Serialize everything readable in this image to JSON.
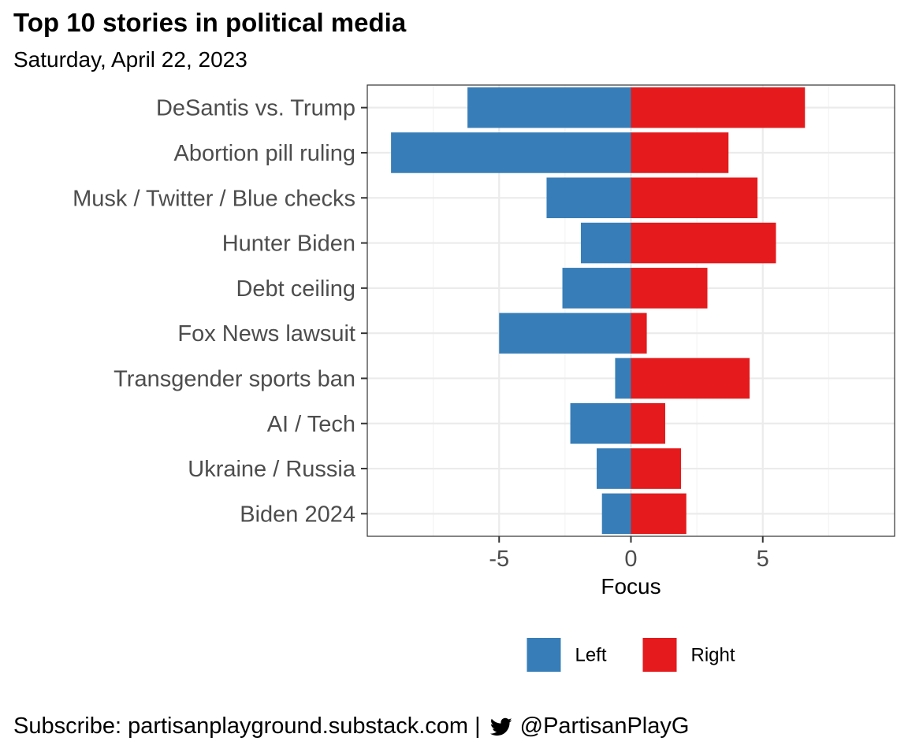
{
  "header": {
    "title": "Top 10 stories in political media",
    "subtitle": "Saturday, April 22, 2023"
  },
  "footer": {
    "subscribe_text": "Subscribe: partisanplayground.substack.com",
    "separator": "|",
    "icon": "twitter-bird-icon",
    "handle": "@PartisanPlayG"
  },
  "chart_data": {
    "type": "bar",
    "orientation": "horizontal",
    "stacked": "diverging",
    "title": "Top 10 stories in political media",
    "subtitle": "Saturday, April 22, 2023",
    "xlabel": "Focus",
    "ylabel": "",
    "xlim": [
      -10,
      10
    ],
    "xticks": [
      -5,
      0,
      5
    ],
    "xtick_labels": [
      "-5",
      "0",
      "5"
    ],
    "grid": true,
    "legend_position": "bottom",
    "categories": [
      "DeSantis vs. Trump",
      "Abortion pill ruling",
      "Musk / Twitter / Blue checks",
      "Hunter Biden",
      "Debt ceiling",
      "Fox News lawsuit",
      "Transgender sports ban",
      "AI / Tech",
      "Ukraine / Russia",
      "Biden 2024"
    ],
    "series": [
      {
        "name": "Left",
        "color": "#377EB8",
        "values": [
          -6.2,
          -9.1,
          -3.2,
          -1.9,
          -2.6,
          -5.0,
          -0.6,
          -2.3,
          -1.3,
          -1.1
        ]
      },
      {
        "name": "Right",
        "color": "#E41A1C",
        "values": [
          6.6,
          3.7,
          4.8,
          5.5,
          2.9,
          0.6,
          4.5,
          1.3,
          1.9,
          2.1
        ]
      }
    ]
  }
}
